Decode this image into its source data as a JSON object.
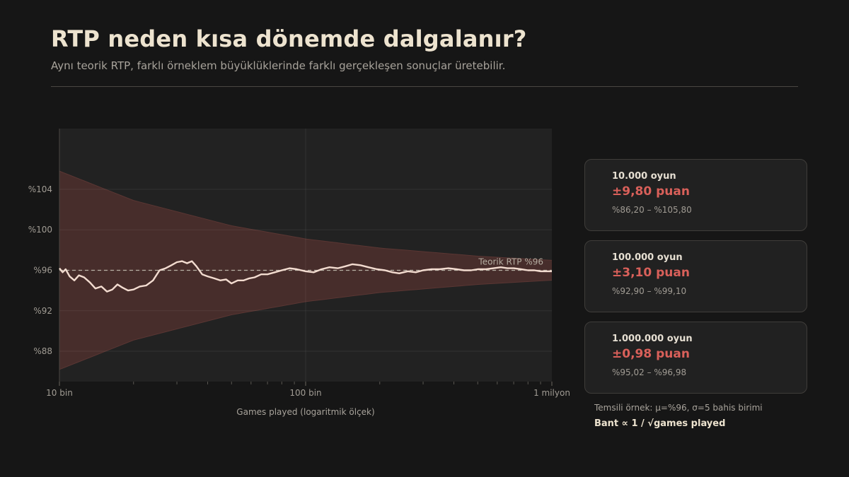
{
  "header": {
    "title": "RTP neden kısa dönemde dalgalanır?",
    "subtitle": "Aynı teorik RTP, farklı örneklem büyüklüklerinde farklı gerçekleşen sonuçlar üretebilir."
  },
  "chart_data": {
    "type": "line",
    "title": "",
    "xlabel": "Games played (logaritmik ölçek)",
    "ylabel": "",
    "x_scale": "log",
    "xlim": [
      10000,
      1000000
    ],
    "ylim": [
      85,
      110
    ],
    "x_ticks": [
      {
        "value": 10000,
        "label": "10 bin"
      },
      {
        "value": 100000,
        "label": "100 bin"
      },
      {
        "value": 1000000,
        "label": "1 milyon"
      }
    ],
    "y_ticks": [
      {
        "value": 88,
        "label": "%88"
      },
      {
        "value": 92,
        "label": "%92"
      },
      {
        "value": 96,
        "label": "%96"
      },
      {
        "value": 100,
        "label": "%100"
      },
      {
        "value": 104,
        "label": "%104"
      }
    ],
    "grid": true,
    "reference_line": {
      "value": 96,
      "label": "Teorik RTP %96",
      "style": "dashed"
    },
    "band": {
      "center": 96,
      "upper": [
        [
          10000,
          105.8
        ],
        [
          20000,
          102.9
        ],
        [
          50000,
          100.4
        ],
        [
          100000,
          99.1
        ],
        [
          200000,
          98.2
        ],
        [
          500000,
          97.4
        ],
        [
          1000000,
          96.98
        ]
      ],
      "lower": [
        [
          10000,
          86.2
        ],
        [
          20000,
          89.1
        ],
        [
          50000,
          91.6
        ],
        [
          100000,
          92.9
        ],
        [
          200000,
          93.8
        ],
        [
          500000,
          94.6
        ],
        [
          1000000,
          95.02
        ]
      ],
      "color": "#4a2e2c"
    },
    "series": [
      {
        "color": "#f3dcd0",
        "points": [
          [
            10000,
            96.2
          ],
          [
            10300,
            95.8
          ],
          [
            10600,
            96.1
          ],
          [
            11000,
            95.4
          ],
          [
            11500,
            95.0
          ],
          [
            12000,
            95.5
          ],
          [
            12600,
            95.3
          ],
          [
            13300,
            94.8
          ],
          [
            14000,
            94.2
          ],
          [
            14800,
            94.4
          ],
          [
            15600,
            93.9
          ],
          [
            16400,
            94.1
          ],
          [
            17200,
            94.6
          ],
          [
            18000,
            94.3
          ],
          [
            19000,
            94.0
          ],
          [
            20000,
            94.1
          ],
          [
            21200,
            94.4
          ],
          [
            22500,
            94.5
          ],
          [
            24000,
            95.0
          ],
          [
            25500,
            96.0
          ],
          [
            27000,
            96.2
          ],
          [
            28500,
            96.5
          ],
          [
            30000,
            96.8
          ],
          [
            31500,
            96.9
          ],
          [
            33000,
            96.7
          ],
          [
            34500,
            96.9
          ],
          [
            36000,
            96.4
          ],
          [
            38000,
            95.6
          ],
          [
            40000,
            95.4
          ],
          [
            42500,
            95.2
          ],
          [
            45000,
            95.0
          ],
          [
            47500,
            95.1
          ],
          [
            50000,
            94.7
          ],
          [
            53000,
            95.0
          ],
          [
            56000,
            95.0
          ],
          [
            59000,
            95.2
          ],
          [
            62000,
            95.3
          ],
          [
            66000,
            95.6
          ],
          [
            70000,
            95.6
          ],
          [
            75000,
            95.8
          ],
          [
            80000,
            96.0
          ],
          [
            86000,
            96.2
          ],
          [
            92000,
            96.1
          ],
          [
            100000,
            95.9
          ],
          [
            108000,
            95.8
          ],
          [
            116000,
            96.1
          ],
          [
            125000,
            96.3
          ],
          [
            135000,
            96.2
          ],
          [
            145000,
            96.4
          ],
          [
            155000,
            96.6
          ],
          [
            167000,
            96.5
          ],
          [
            180000,
            96.3
          ],
          [
            195000,
            96.1
          ],
          [
            210000,
            96.0
          ],
          [
            225000,
            95.8
          ],
          [
            240000,
            95.7
          ],
          [
            260000,
            95.9
          ],
          [
            280000,
            95.8
          ],
          [
            300000,
            96.0
          ],
          [
            325000,
            96.1
          ],
          [
            350000,
            96.1
          ],
          [
            380000,
            96.2
          ],
          [
            410000,
            96.1
          ],
          [
            440000,
            96.0
          ],
          [
            470000,
            96.0
          ],
          [
            500000,
            96.1
          ],
          [
            540000,
            96.1
          ],
          [
            580000,
            96.2
          ],
          [
            620000,
            96.3
          ],
          [
            660000,
            96.2
          ],
          [
            700000,
            96.2
          ],
          [
            750000,
            96.1
          ],
          [
            800000,
            96.0
          ],
          [
            850000,
            96.0
          ],
          [
            900000,
            95.9
          ],
          [
            950000,
            95.9
          ],
          [
            1000000,
            95.9
          ]
        ]
      }
    ]
  },
  "cards": [
    {
      "label": "10.000 oyun",
      "value": "±9,80 puan",
      "range": "%86,20 – %105,80"
    },
    {
      "label": "100.000 oyun",
      "value": "±3,10 puan",
      "range": "%92,90 – %99,10"
    },
    {
      "label": "1.000.000 oyun",
      "value": "±0,98 puan",
      "range": "%95,02 – %96,98"
    }
  ],
  "footer": {
    "note": "Temsili örnek: μ=%96, σ=5 bahis birimi",
    "formula": "Bant ∝ 1 / √games played"
  }
}
